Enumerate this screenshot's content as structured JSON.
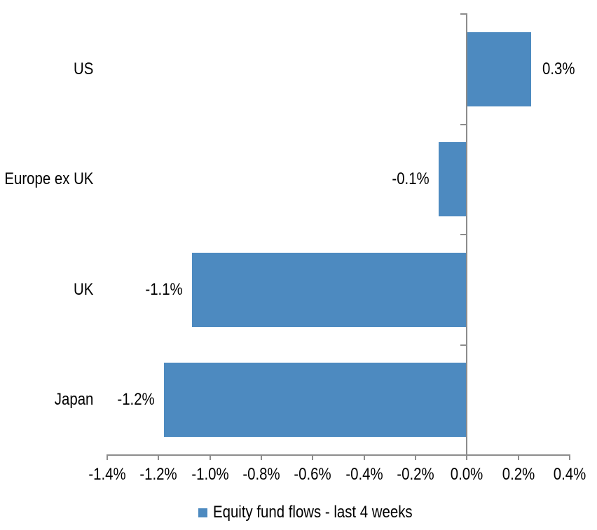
{
  "chart_data": {
    "type": "bar",
    "orientation": "horizontal",
    "title": "",
    "categories": [
      "US",
      "Europe ex UK",
      "UK",
      "Japan"
    ],
    "values": [
      0.3,
      -0.1,
      -1.1,
      -1.2
    ],
    "bar_lengths_precise": [
      0.25,
      -0.11,
      -1.07,
      -1.18
    ],
    "data_labels": [
      "0.3%",
      "-0.1%",
      "-1.1%",
      "-1.2%"
    ],
    "unit": "percent",
    "series": [
      {
        "name": "Equity fund flows - last 4 weeks",
        "color": "#4D8AC0"
      }
    ],
    "xlim": [
      -1.4,
      0.4
    ],
    "x_tick_values": [
      -1.4,
      -1.2,
      -1.0,
      -0.8,
      -0.6,
      -0.4,
      -0.2,
      0.0,
      0.2,
      0.4
    ],
    "x_tick_labels": [
      "-1.4%",
      "-1.2%",
      "-1.0%",
      "-0.8%",
      "-0.6%",
      "-0.4%",
      "-0.2%",
      "0.0%",
      "0.2%",
      "0.4%"
    ],
    "grid": false,
    "legend_position": "bottom",
    "colors": {
      "bar": "#4D8AC0",
      "axis": "#8C8C8C",
      "text": "#000000",
      "background": "#FFFFFF"
    }
  },
  "legend": {
    "label": "Equity fund flows - last 4 weeks",
    "swatch_color": "#4D8AC0"
  }
}
